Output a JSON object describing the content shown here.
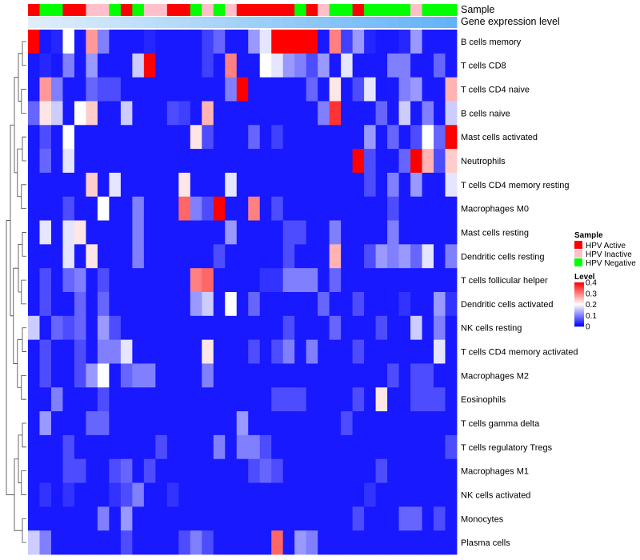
{
  "chart_data": {
    "type": "heatmap",
    "column_annotation_labels": {
      "sample": "Sample",
      "level": "Gene expression level"
    },
    "rows": [
      "B cells memory",
      "T cells CD8",
      "T cells CD4 naive",
      "B cells naive",
      "Mast cells activated",
      "Neutrophils",
      "T cells CD4 memory resting",
      "Macrophages M0",
      "Mast cells resting",
      "Dendritic cells resting",
      "T cells follicular helper",
      "Dendritic cells activated",
      "NK cells resting",
      "T cells CD4 memory activated",
      "Macrophages M2",
      "Eosinophils",
      "T cells gamma delta",
      "T cells regulatory  Tregs",
      "Macrophages M1",
      "NK cells activated",
      "Monocytes",
      "Plasma cells"
    ],
    "sample_groups": [
      "HPV Active",
      "HPV Negative",
      "HPV Negative",
      "HPV Active",
      "HPV Active",
      "HPV Inactive",
      "HPV Inactive",
      "HPV Negative",
      "HPV Active",
      "HPV Negative",
      "HPV Inactive",
      "HPV Inactive",
      "HPV Active",
      "HPV Active",
      "HPV Negative",
      "HPV Inactive",
      "HPV Negative",
      "HPV Inactive",
      "HPV Active",
      "HPV Active",
      "HPV Active",
      "HPV Active",
      "HPV Active",
      "HPV Negative",
      "HPV Active",
      "HPV Inactive",
      "HPV Negative",
      "HPV Negative",
      "HPV Active",
      "HPV Negative",
      "HPV Negative",
      "HPV Negative",
      "HPV Negative",
      "HPV Inactive",
      "HPV Negative",
      "HPV Negative",
      "HPV Negative"
    ],
    "gene_expression_level": [
      0.02,
      0.04,
      0.06,
      0.08,
      0.1,
      0.12,
      0.14,
      0.16,
      0.18,
      0.2,
      0.22,
      0.24,
      0.26,
      0.28,
      0.3,
      0.32,
      0.34,
      0.36,
      0.38,
      0.4,
      0.42,
      0.44,
      0.46,
      0.48,
      0.5,
      0.52,
      0.54,
      0.56,
      0.58,
      0.6,
      0.62,
      0.64,
      0.66,
      0.68,
      0.7,
      0.72,
      0.74
    ],
    "values": [
      [
        0.4,
        0.02,
        0.03,
        0.2,
        0.02,
        0.28,
        0.1,
        0.02,
        0.02,
        0.02,
        0.03,
        0.02,
        0.02,
        0.02,
        0.02,
        0.05,
        0.08,
        0.02,
        0.02,
        0.12,
        0.18,
        0.4,
        0.4,
        0.4,
        0.4,
        0.02,
        0.3,
        0.05,
        0.12,
        0.03,
        0.02,
        0.02,
        0.03,
        0.12,
        0.02,
        0.02,
        0.02
      ],
      [
        0.02,
        0.03,
        0.02,
        0.1,
        0.02,
        0.12,
        0.02,
        0.02,
        0.02,
        0.16,
        0.4,
        0.02,
        0.02,
        0.02,
        0.02,
        0.05,
        0.02,
        0.3,
        0.02,
        0.02,
        0.2,
        0.18,
        0.12,
        0.1,
        0.06,
        0.12,
        0.02,
        0.18,
        0.02,
        0.02,
        0.02,
        0.1,
        0.1,
        0.02,
        0.02,
        0.08,
        0.02
      ],
      [
        0.02,
        0.28,
        0.1,
        0.02,
        0.02,
        0.08,
        0.06,
        0.06,
        0.02,
        0.02,
        0.02,
        0.02,
        0.02,
        0.02,
        0.02,
        0.02,
        0.02,
        0.1,
        0.4,
        0.02,
        0.02,
        0.02,
        0.02,
        0.02,
        0.08,
        0.02,
        0.22,
        0.02,
        0.06,
        0.18,
        0.02,
        0.02,
        0.1,
        0.12,
        0.02,
        0.02,
        0.26
      ],
      [
        0.08,
        0.22,
        0.16,
        0.02,
        0.2,
        0.24,
        0.02,
        0.02,
        0.16,
        0.02,
        0.02,
        0.02,
        0.06,
        0.05,
        0.02,
        0.26,
        0.02,
        0.02,
        0.02,
        0.02,
        0.02,
        0.02,
        0.02,
        0.02,
        0.02,
        0.1,
        0.36,
        0.02,
        0.02,
        0.02,
        0.08,
        0.02,
        0.16,
        0.02,
        0.1,
        0.02,
        0.16
      ],
      [
        0.02,
        0.06,
        0.02,
        0.2,
        0.02,
        0.02,
        0.02,
        0.02,
        0.02,
        0.02,
        0.02,
        0.02,
        0.02,
        0.02,
        0.22,
        0.06,
        0.02,
        0.02,
        0.02,
        0.08,
        0.02,
        0.05,
        0.02,
        0.02,
        0.02,
        0.02,
        0.02,
        0.02,
        0.02,
        0.12,
        0.02,
        0.08,
        0.02,
        0.06,
        0.2,
        0.08,
        0.4
      ],
      [
        0.02,
        0.08,
        0.02,
        0.18,
        0.02,
        0.02,
        0.02,
        0.02,
        0.02,
        0.02,
        0.02,
        0.02,
        0.02,
        0.02,
        0.02,
        0.02,
        0.02,
        0.02,
        0.02,
        0.02,
        0.02,
        0.02,
        0.02,
        0.02,
        0.02,
        0.02,
        0.02,
        0.02,
        0.4,
        0.06,
        0.02,
        0.02,
        0.08,
        0.4,
        0.26,
        0.06,
        0.24
      ],
      [
        0.02,
        0.02,
        0.02,
        0.02,
        0.02,
        0.24,
        0.02,
        0.18,
        0.02,
        0.02,
        0.02,
        0.02,
        0.02,
        0.22,
        0.02,
        0.02,
        0.02,
        0.18,
        0.02,
        0.02,
        0.02,
        0.02,
        0.02,
        0.02,
        0.02,
        0.02,
        0.02,
        0.02,
        0.02,
        0.06,
        0.02,
        0.1,
        0.02,
        0.12,
        0.02,
        0.02,
        0.18
      ],
      [
        0.02,
        0.02,
        0.02,
        0.06,
        0.02,
        0.02,
        0.2,
        0.02,
        0.02,
        0.1,
        0.02,
        0.02,
        0.02,
        0.32,
        0.1,
        0.06,
        0.4,
        0.02,
        0.02,
        0.3,
        0.02,
        0.06,
        0.02,
        0.02,
        0.02,
        0.02,
        0.02,
        0.02,
        0.02,
        0.02,
        0.02,
        0.06,
        0.02,
        0.02,
        0.02,
        0.02,
        0.02
      ],
      [
        0.02,
        0.18,
        0.02,
        0.18,
        0.22,
        0.02,
        0.02,
        0.02,
        0.02,
        0.1,
        0.02,
        0.02,
        0.02,
        0.02,
        0.02,
        0.02,
        0.02,
        0.12,
        0.02,
        0.02,
        0.02,
        0.02,
        0.06,
        0.06,
        0.02,
        0.02,
        0.1,
        0.02,
        0.02,
        0.02,
        0.02,
        0.1,
        0.02,
        0.02,
        0.02,
        0.02,
        0.02
      ],
      [
        0.02,
        0.02,
        0.02,
        0.18,
        0.02,
        0.22,
        0.02,
        0.02,
        0.02,
        0.1,
        0.02,
        0.02,
        0.02,
        0.02,
        0.02,
        0.02,
        0.06,
        0.02,
        0.02,
        0.02,
        0.02,
        0.02,
        0.06,
        0.02,
        0.02,
        0.02,
        0.26,
        0.02,
        0.02,
        0.06,
        0.12,
        0.1,
        0.12,
        0.08,
        0.18,
        0.02,
        0.1
      ],
      [
        0.02,
        0.06,
        0.02,
        0.08,
        0.1,
        0.02,
        0.06,
        0.02,
        0.02,
        0.02,
        0.02,
        0.02,
        0.02,
        0.02,
        0.3,
        0.32,
        0.02,
        0.02,
        0.02,
        0.02,
        0.04,
        0.04,
        0.1,
        0.1,
        0.1,
        0.02,
        0.08,
        0.02,
        0.02,
        0.02,
        0.02,
        0.02,
        0.02,
        0.02,
        0.02,
        0.02,
        0.02
      ],
      [
        0.02,
        0.06,
        0.02,
        0.02,
        0.08,
        0.02,
        0.08,
        0.02,
        0.02,
        0.02,
        0.02,
        0.02,
        0.02,
        0.02,
        0.12,
        0.16,
        0.02,
        0.2,
        0.02,
        0.08,
        0.02,
        0.02,
        0.02,
        0.02,
        0.02,
        0.08,
        0.02,
        0.02,
        0.06,
        0.02,
        0.02,
        0.02,
        0.04,
        0.02,
        0.02,
        0.12,
        0.04
      ],
      [
        0.16,
        0.02,
        0.08,
        0.06,
        0.08,
        0.02,
        0.12,
        0.06,
        0.02,
        0.02,
        0.02,
        0.02,
        0.02,
        0.02,
        0.02,
        0.02,
        0.02,
        0.02,
        0.02,
        0.02,
        0.02,
        0.02,
        0.06,
        0.02,
        0.02,
        0.02,
        0.08,
        0.02,
        0.02,
        0.02,
        0.06,
        0.02,
        0.02,
        0.16,
        0.02,
        0.1,
        0.02
      ],
      [
        0.02,
        0.06,
        0.02,
        0.02,
        0.06,
        0.02,
        0.1,
        0.1,
        0.18,
        0.02,
        0.02,
        0.02,
        0.02,
        0.02,
        0.02,
        0.22,
        0.02,
        0.02,
        0.02,
        0.06,
        0.02,
        0.06,
        0.1,
        0.02,
        0.1,
        0.02,
        0.02,
        0.02,
        0.06,
        0.02,
        0.02,
        0.02,
        0.02,
        0.02,
        0.02,
        0.18,
        0.02
      ],
      [
        0.02,
        0.06,
        0.02,
        0.02,
        0.06,
        0.12,
        0.2,
        0.02,
        0.08,
        0.1,
        0.1,
        0.02,
        0.02,
        0.02,
        0.02,
        0.1,
        0.02,
        0.02,
        0.02,
        0.02,
        0.02,
        0.02,
        0.02,
        0.02,
        0.02,
        0.02,
        0.02,
        0.02,
        0.02,
        0.02,
        0.02,
        0.06,
        0.02,
        0.06,
        0.06,
        0.02,
        0.02
      ],
      [
        0.02,
        0.02,
        0.1,
        0.02,
        0.02,
        0.02,
        0.06,
        0.02,
        0.02,
        0.02,
        0.02,
        0.02,
        0.02,
        0.02,
        0.02,
        0.02,
        0.02,
        0.02,
        0.02,
        0.02,
        0.02,
        0.06,
        0.06,
        0.06,
        0.02,
        0.02,
        0.02,
        0.02,
        0.06,
        0.02,
        0.22,
        0.02,
        0.02,
        0.06,
        0.06,
        0.06,
        0.02
      ],
      [
        0.02,
        0.12,
        0.02,
        0.02,
        0.02,
        0.08,
        0.08,
        0.02,
        0.02,
        0.02,
        0.02,
        0.02,
        0.02,
        0.02,
        0.02,
        0.02,
        0.02,
        0.02,
        0.12,
        0.02,
        0.02,
        0.02,
        0.02,
        0.02,
        0.02,
        0.02,
        0.02,
        0.06,
        0.02,
        0.02,
        0.02,
        0.02,
        0.02,
        0.02,
        0.02,
        0.02,
        0.02
      ],
      [
        0.02,
        0.02,
        0.02,
        0.06,
        0.02,
        0.02,
        0.02,
        0.02,
        0.02,
        0.02,
        0.02,
        0.06,
        0.02,
        0.02,
        0.02,
        0.02,
        0.1,
        0.02,
        0.1,
        0.1,
        0.06,
        0.02,
        0.02,
        0.02,
        0.02,
        0.02,
        0.02,
        0.02,
        0.02,
        0.02,
        0.02,
        0.02,
        0.02,
        0.02,
        0.02,
        0.02,
        0.06
      ],
      [
        0.02,
        0.02,
        0.02,
        0.06,
        0.06,
        0.02,
        0.02,
        0.06,
        0.08,
        0.02,
        0.06,
        0.02,
        0.02,
        0.02,
        0.02,
        0.02,
        0.02,
        0.02,
        0.02,
        0.06,
        0.08,
        0.06,
        0.02,
        0.02,
        0.02,
        0.02,
        0.02,
        0.02,
        0.02,
        0.02,
        0.06,
        0.02,
        0.02,
        0.02,
        0.02,
        0.02,
        0.02
      ],
      [
        0.02,
        0.04,
        0.02,
        0.04,
        0.02,
        0.02,
        0.02,
        0.04,
        0.06,
        0.1,
        0.02,
        0.02,
        0.04,
        0.02,
        0.02,
        0.02,
        0.02,
        0.02,
        0.02,
        0.02,
        0.02,
        0.02,
        0.02,
        0.02,
        0.02,
        0.02,
        0.02,
        0.02,
        0.02,
        0.04,
        0.02,
        0.02,
        0.02,
        0.02,
        0.02,
        0.02,
        0.02
      ],
      [
        0.02,
        0.02,
        0.02,
        0.02,
        0.02,
        0.02,
        0.1,
        0.02,
        0.12,
        0.02,
        0.02,
        0.02,
        0.02,
        0.02,
        0.02,
        0.02,
        0.02,
        0.02,
        0.02,
        0.02,
        0.02,
        0.02,
        0.02,
        0.02,
        0.02,
        0.02,
        0.02,
        0.02,
        0.06,
        0.02,
        0.02,
        0.02,
        0.08,
        0.08,
        0.02,
        0.06,
        0.02
      ],
      [
        0.16,
        0.1,
        0.02,
        0.02,
        0.02,
        0.02,
        0.02,
        0.02,
        0.06,
        0.02,
        0.02,
        0.02,
        0.02,
        0.06,
        0.1,
        0.06,
        0.02,
        0.02,
        0.02,
        0.02,
        0.02,
        0.32,
        0.02,
        0.12,
        0.1,
        0.02,
        0.02,
        0.02,
        0.02,
        0.02,
        0.02,
        0.02,
        0.02,
        0.02,
        0.02,
        0.02,
        0.02
      ]
    ],
    "legend": {
      "sample_title": "Sample",
      "sample_entries": [
        {
          "label": "HPV Active",
          "color": "#ff0000"
        },
        {
          "label": "HPV Inactive",
          "color": "#ffc0cb"
        },
        {
          "label": "HPV Negative",
          "color": "#00ff00"
        }
      ],
      "level_title": "Level",
      "level_ticks": [
        "0.4",
        "0.3",
        "0.2",
        "0.1",
        "0"
      ],
      "level_tick_values": [
        0.4,
        0.3,
        0.2,
        0.1,
        0
      ]
    },
    "color_scale": {
      "low": "#0000ff",
      "mid": "#ffffff",
      "high": "#ff0000",
      "min": 0,
      "mid_value": 0.2,
      "max": 0.4
    },
    "annotation_scale": {
      "low": "#dfeefb",
      "high": "#63b3f7"
    }
  }
}
